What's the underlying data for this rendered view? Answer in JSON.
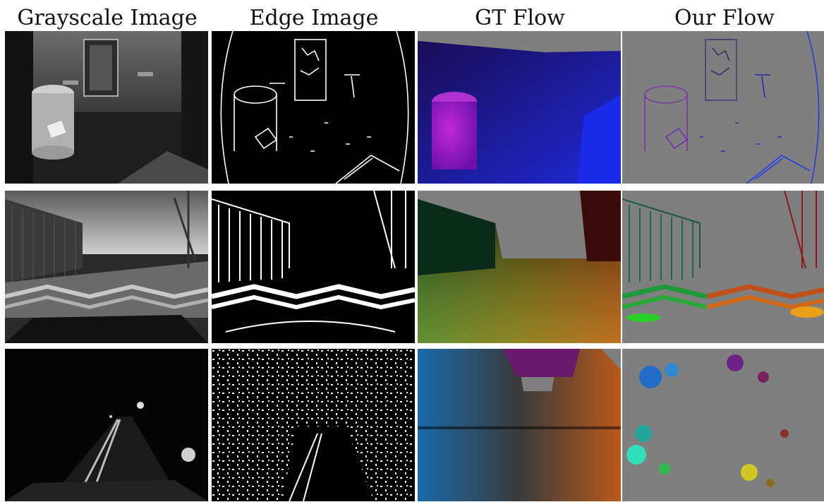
{
  "figure": {
    "columns": [
      {
        "label": "Grayscale Image"
      },
      {
        "label": "Edge Image"
      },
      {
        "label": "GT Flow"
      },
      {
        "label": "Our Flow"
      }
    ],
    "rows": [
      {
        "scene": "indoor-room",
        "colors": {
          "gt_main": "#2a1aa8",
          "gt_object": "#9a18c8",
          "our_main": "#3a2ad0"
        }
      },
      {
        "scene": "outdoor-day-street",
        "colors": {
          "gt_left": "#1c7a3a",
          "gt_right": "#b8451a",
          "gt_bottom": "#c8b02a"
        }
      },
      {
        "scene": "outdoor-night-street",
        "colors": {
          "gt_left": "#1a6aa8",
          "gt_top": "#7a1a7a",
          "gt_right": "#b85a1a"
        }
      }
    ]
  }
}
